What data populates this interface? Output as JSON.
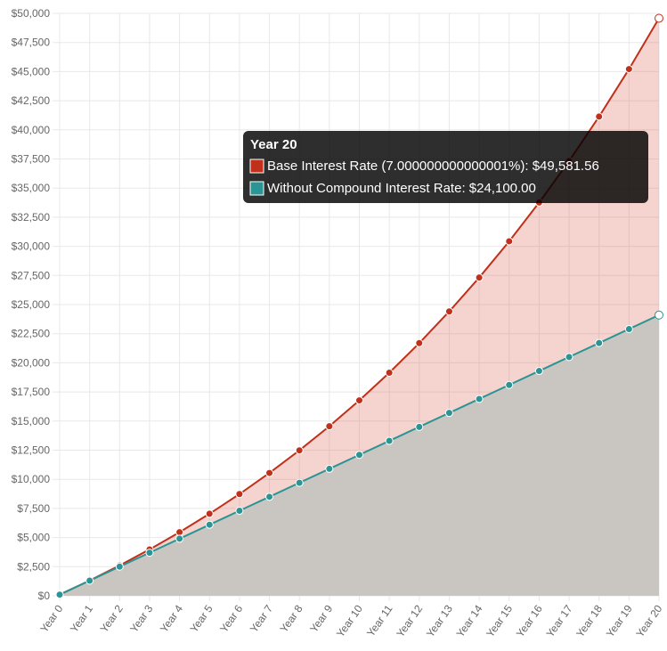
{
  "chart_data": {
    "type": "area",
    "categories": [
      "Year 0",
      "Year 1",
      "Year 2",
      "Year 3",
      "Year 4",
      "Year 5",
      "Year 6",
      "Year 7",
      "Year 8",
      "Year 9",
      "Year 10",
      "Year 11",
      "Year 12",
      "Year 13",
      "Year 14",
      "Year 15",
      "Year 16",
      "Year 17",
      "Year 18",
      "Year 19",
      "Year 20"
    ],
    "series": [
      {
        "color": "#c0301a",
        "fill": "rgba(214,80,60,0.25)",
        "values": [
          100,
          1307,
          2598,
          3980,
          5460,
          7041,
          8734,
          10545,
          12484,
          14557,
          16776,
          19151,
          21691,
          24410,
          27318,
          30431,
          33761,
          37324,
          41137,
          45216,
          49581.56
        ]
      },
      {
        "color": "#2b9494",
        "fill": "#c9c6c1",
        "values": [
          100,
          1300,
          2500,
          3700,
          4900,
          6100,
          7300,
          8500,
          9700,
          10900,
          12100,
          13300,
          14500,
          15700,
          16900,
          18100,
          19300,
          20500,
          21700,
          22900,
          24100
        ]
      }
    ],
    "ylim": [
      0,
      50000
    ],
    "yticks": [
      {
        "value": 0,
        "label": "$0"
      },
      {
        "value": 2500,
        "label": "$2,500"
      },
      {
        "value": 5000,
        "label": "$5,000"
      },
      {
        "value": 7500,
        "label": "$7,500"
      },
      {
        "value": 10000,
        "label": "$10,000"
      },
      {
        "value": 12500,
        "label": "$12,500"
      },
      {
        "value": 15000,
        "label": "$15,000"
      },
      {
        "value": 17500,
        "label": "$17,500"
      },
      {
        "value": 20000,
        "label": "$20,000"
      },
      {
        "value": 22500,
        "label": "$22,500"
      },
      {
        "value": 25000,
        "label": "$25,000"
      },
      {
        "value": 27500,
        "label": "$27,500"
      },
      {
        "value": 30000,
        "label": "$30,000"
      },
      {
        "value": 32500,
        "label": "$32,500"
      },
      {
        "value": 35000,
        "label": "$35,000"
      },
      {
        "value": 37500,
        "label": "$37,500"
      },
      {
        "value": 40000,
        "label": "$40,000"
      },
      {
        "value": 42500,
        "label": "$42,500"
      },
      {
        "value": 45000,
        "label": "$45,000"
      },
      {
        "value": 47500,
        "label": "$47,500"
      },
      {
        "value": 50000,
        "label": "$50,000"
      }
    ],
    "grid": true,
    "tooltip": {
      "title": "Year 20",
      "items": [
        {
          "text": "Base Interest Rate (7.000000000000001%): $49,581.56",
          "color": "#c0301a"
        },
        {
          "text": "Without Compound Interest Rate: $24,100.00",
          "color": "#2b9494"
        }
      ]
    }
  }
}
